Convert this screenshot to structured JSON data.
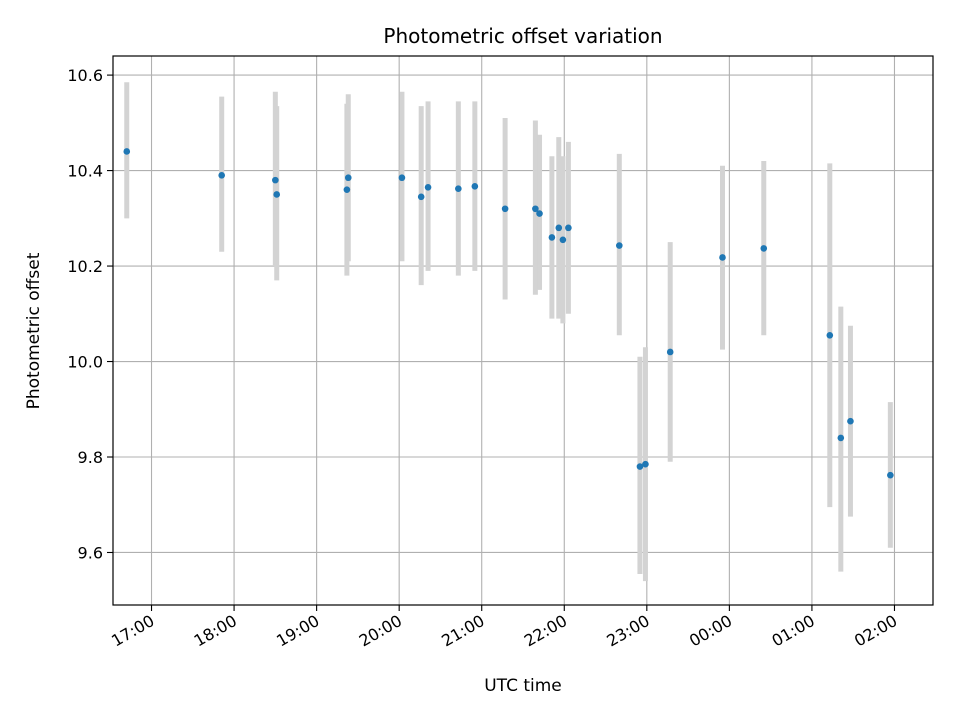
{
  "chart_data": {
    "type": "scatter",
    "title": "Photometric offset variation",
    "xlabel": "UTC time",
    "ylabel": "Photometric offset",
    "grid": true,
    "xlim": [
      "16:32",
      "02:28"
    ],
    "ylim": [
      9.49,
      10.64
    ],
    "x_ticks": [
      "17:00",
      "18:00",
      "19:00",
      "20:00",
      "21:00",
      "22:00",
      "23:00",
      "00:00",
      "01:00",
      "02:00"
    ],
    "y_ticks": [
      9.6,
      9.8,
      10.0,
      10.2,
      10.4,
      10.6
    ],
    "y_tick_labels": [
      "9.6",
      "9.8",
      "10.0",
      "10.2",
      "10.4",
      "10.6"
    ],
    "marker_color": "#1f77b4",
    "errorbar_color": "#d3d3d3",
    "series": [
      {
        "points": [
          {
            "x": "16:42",
            "y": 10.44,
            "low": 10.3,
            "high": 10.585
          },
          {
            "x": "17:51",
            "y": 10.39,
            "low": 10.23,
            "high": 10.555
          },
          {
            "x": "18:30",
            "y": 10.38,
            "low": 10.2,
            "high": 10.565
          },
          {
            "x": "18:31",
            "y": 10.35,
            "low": 10.17,
            "high": 10.535
          },
          {
            "x": "19:22",
            "y": 10.36,
            "low": 10.18,
            "high": 10.54
          },
          {
            "x": "19:23",
            "y": 10.385,
            "low": 10.21,
            "high": 10.56
          },
          {
            "x": "20:02",
            "y": 10.385,
            "low": 10.21,
            "high": 10.565
          },
          {
            "x": "20:16",
            "y": 10.345,
            "low": 10.16,
            "high": 10.535
          },
          {
            "x": "20:21",
            "y": 10.365,
            "low": 10.19,
            "high": 10.545
          },
          {
            "x": "20:43",
            "y": 10.362,
            "low": 10.18,
            "high": 10.545
          },
          {
            "x": "20:55",
            "y": 10.367,
            "low": 10.19,
            "high": 10.545
          },
          {
            "x": "21:17",
            "y": 10.32,
            "low": 10.13,
            "high": 10.51
          },
          {
            "x": "21:39",
            "y": 10.32,
            "low": 10.14,
            "high": 10.505
          },
          {
            "x": "21:42",
            "y": 10.31,
            "low": 10.15,
            "high": 10.475
          },
          {
            "x": "21:51",
            "y": 10.26,
            "low": 10.09,
            "high": 10.43
          },
          {
            "x": "21:56",
            "y": 10.28,
            "low": 10.09,
            "high": 10.47
          },
          {
            "x": "21:59",
            "y": 10.255,
            "low": 10.08,
            "high": 10.43
          },
          {
            "x": "22:03",
            "y": 10.28,
            "low": 10.1,
            "high": 10.46
          },
          {
            "x": "22:40",
            "y": 10.243,
            "low": 10.055,
            "high": 10.435
          },
          {
            "x": "22:55",
            "y": 9.78,
            "low": 9.555,
            "high": 10.01
          },
          {
            "x": "22:59",
            "y": 9.785,
            "low": 9.54,
            "high": 10.03
          },
          {
            "x": "23:17",
            "y": 10.02,
            "low": 9.79,
            "high": 10.25
          },
          {
            "x": "23:55",
            "y": 10.218,
            "low": 10.025,
            "high": 10.41
          },
          {
            "x": "00:25",
            "y": 10.237,
            "low": 10.055,
            "high": 10.42
          },
          {
            "x": "01:13",
            "y": 10.055,
            "low": 9.695,
            "high": 10.415
          },
          {
            "x": "01:21",
            "y": 9.84,
            "low": 9.56,
            "high": 10.115
          },
          {
            "x": "01:28",
            "y": 9.875,
            "low": 9.675,
            "high": 10.075
          },
          {
            "x": "01:57",
            "y": 9.762,
            "low": 9.61,
            "high": 9.915
          }
        ]
      }
    ]
  }
}
